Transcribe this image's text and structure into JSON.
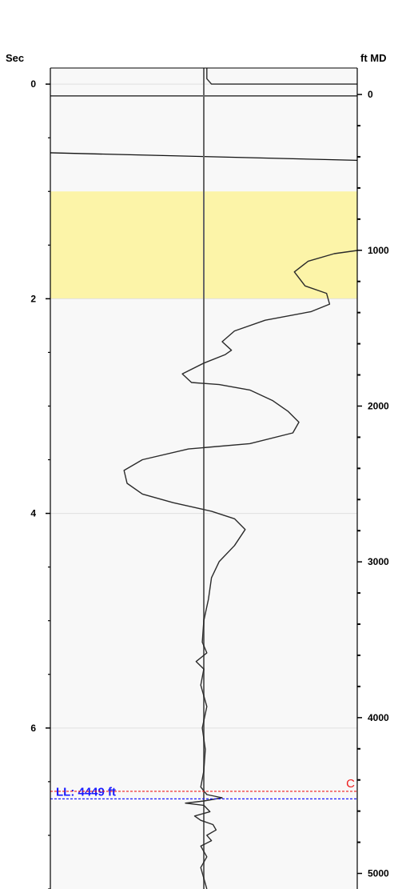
{
  "chart_data": {
    "type": "line",
    "left_axis": {
      "label": "Sec",
      "range": [
        -0.15,
        7.5
      ],
      "major_ticks": [
        0,
        2,
        4,
        6
      ],
      "tick_labels": [
        "0",
        "2",
        "4",
        "6"
      ],
      "minor_step": 0.5
    },
    "right_axis": {
      "label": "ft MD",
      "range": [
        -170,
        5100
      ],
      "major_ticks": [
        0,
        1000,
        2000,
        3000,
        4000,
        5000
      ],
      "tick_labels": [
        "0",
        "1000",
        "2000",
        "3000",
        "4000",
        "5000"
      ],
      "minor_step": 200
    },
    "grid": true,
    "highlight_band": {
      "from": 1.0,
      "to": 2.0,
      "color": "#fcf4a8"
    },
    "colors": {
      "plot_background": "#f8f8f8",
      "trace": "#2a2a2a",
      "gridline": "#e0e0e0"
    },
    "reference_line_x": 0,
    "x_range": [
      -1,
      1
    ],
    "horizon_lines": [
      {
        "x": [
          -1,
          1
        ],
        "y": [
          0.11,
          0.11
        ]
      },
      {
        "x": [
          -1,
          1
        ],
        "y": [
          0.64,
          0.71
        ]
      }
    ],
    "series": [
      {
        "points": [
          [
            0.02,
            -0.15
          ],
          [
            0.02,
            -0.05
          ],
          [
            0.05,
            0.0
          ],
          [
            1.0,
            0.0
          ]
        ]
      },
      {
        "points": [
          [
            1.0,
            1.55
          ],
          [
            0.85,
            1.58
          ],
          [
            0.68,
            1.65
          ],
          [
            0.59,
            1.75
          ],
          [
            0.66,
            1.88
          ],
          [
            0.8,
            1.95
          ],
          [
            0.82,
            2.05
          ],
          [
            0.7,
            2.12
          ],
          [
            0.4,
            2.2
          ],
          [
            0.2,
            2.3
          ],
          [
            0.12,
            2.4
          ],
          [
            0.18,
            2.48
          ],
          [
            0.14,
            2.52
          ],
          [
            0.0,
            2.6
          ],
          [
            -0.14,
            2.7
          ],
          [
            -0.08,
            2.78
          ],
          [
            0.1,
            2.8
          ],
          [
            0.3,
            2.85
          ],
          [
            0.45,
            2.95
          ],
          [
            0.55,
            3.05
          ],
          [
            0.62,
            3.15
          ],
          [
            0.58,
            3.25
          ],
          [
            0.3,
            3.35
          ],
          [
            -0.1,
            3.4
          ],
          [
            -0.4,
            3.5
          ],
          [
            -0.52,
            3.6
          ],
          [
            -0.5,
            3.72
          ],
          [
            -0.4,
            3.82
          ],
          [
            -0.2,
            3.9
          ],
          [
            0.05,
            3.98
          ],
          [
            0.2,
            4.05
          ],
          [
            0.27,
            4.15
          ],
          [
            0.2,
            4.3
          ],
          [
            0.1,
            4.45
          ],
          [
            0.05,
            4.6
          ],
          [
            0.03,
            4.8
          ],
          [
            0.0,
            5.0
          ],
          [
            -0.01,
            5.2
          ],
          [
            0.02,
            5.3
          ],
          [
            -0.05,
            5.38
          ],
          [
            0.0,
            5.45
          ],
          [
            -0.02,
            5.6
          ],
          [
            0.02,
            5.8
          ],
          [
            -0.01,
            6.0
          ],
          [
            0.01,
            6.2
          ],
          [
            0.0,
            6.4
          ],
          [
            -0.02,
            6.55
          ],
          [
            0.02,
            6.62
          ],
          [
            0.12,
            6.65
          ],
          [
            0.0,
            6.68
          ],
          [
            -0.12,
            6.7
          ],
          [
            0.0,
            6.72
          ],
          [
            0.04,
            6.78
          ],
          [
            -0.06,
            6.82
          ],
          [
            -0.02,
            6.86
          ],
          [
            0.06,
            6.9
          ],
          [
            0.08,
            6.95
          ],
          [
            0.02,
            7.0
          ],
          [
            0.05,
            7.05
          ],
          [
            -0.02,
            7.1
          ],
          [
            0.02,
            7.2
          ],
          [
            -0.02,
            7.3
          ],
          [
            0.0,
            7.4
          ],
          [
            0.02,
            7.5
          ]
        ]
      }
    ],
    "markers": [
      {
        "label": "LL: 4449 ft",
        "y": 6.66,
        "color": "#1a1aff",
        "side": "left"
      },
      {
        "label": "C",
        "y": 6.59,
        "color": "#ee1c1c",
        "side": "right"
      }
    ]
  }
}
